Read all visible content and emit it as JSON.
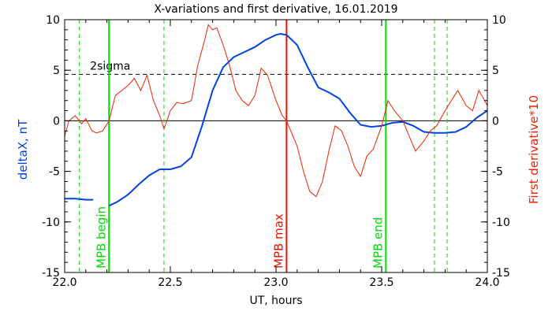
{
  "chart_data": {
    "type": "line",
    "title": "X-variations and first derivative, 16.01.2019",
    "xlabel": "UT, hours",
    "ylabel_left": "deltaX, nT",
    "ylabel_right": "First derivative*10",
    "xlim": [
      22.0,
      24.0
    ],
    "ylim": [
      -15,
      10
    ],
    "x_ticks": [
      "22.0",
      "22.5",
      "23.0",
      "23.5",
      "24.0"
    ],
    "y_ticks_left": [
      "-15",
      "-10",
      "-5",
      "0",
      "5",
      "10"
    ],
    "y_ticks_right": [
      "-15",
      "-10",
      "-5",
      "0",
      "5",
      "10"
    ],
    "grid": false,
    "threshold": {
      "label": "2sigma",
      "y": 4.6,
      "color": "#000000"
    },
    "markers": [
      {
        "label": "MPB begin",
        "x": 22.21,
        "color": "#00dd00"
      },
      {
        "label": "MPB max",
        "x": 23.05,
        "color": "#ee1100"
      },
      {
        "label": "MPB end",
        "x": 23.52,
        "color": "#00dd00"
      }
    ],
    "dashed_markers": [
      {
        "x": 22.07,
        "color": "#00dd00"
      },
      {
        "x": 22.47,
        "color": "#00dd00"
      },
      {
        "x": 23.75,
        "color": "#00dd00"
      },
      {
        "x": 23.81,
        "color": "#00dd00"
      }
    ],
    "series": [
      {
        "axis": "left",
        "color": "#0044dd",
        "x": [
          22.0,
          22.05,
          22.1,
          22.135,
          22.21,
          22.25,
          22.3,
          22.35,
          22.4,
          22.45,
          22.5,
          22.55,
          22.6,
          22.65,
          22.7,
          22.75,
          22.8,
          22.85,
          22.9,
          22.95,
          23.0,
          23.02,
          23.05,
          23.1,
          23.15,
          23.2,
          23.25,
          23.3,
          23.35,
          23.4,
          23.45,
          23.5,
          23.55,
          23.6,
          23.65,
          23.7,
          23.75,
          23.8,
          23.85,
          23.9,
          23.95,
          24.0
        ],
        "y": [
          -7.7,
          -7.7,
          -7.8,
          -7.8,
          -8.4,
          -8.0,
          -7.3,
          -6.3,
          -5.4,
          -4.8,
          -4.8,
          -4.5,
          -3.6,
          -0.5,
          3.0,
          5.3,
          6.3,
          6.8,
          7.3,
          8.0,
          8.5,
          8.6,
          8.5,
          7.5,
          5.3,
          3.3,
          2.8,
          2.2,
          0.8,
          -0.4,
          -0.6,
          -0.5,
          -0.2,
          -0.1,
          -0.5,
          -1.1,
          -1.2,
          -1.2,
          -1.1,
          -0.6,
          0.3,
          1.0
        ]
      },
      {
        "axis": "right",
        "color": "#ee2200",
        "x": [
          22.0,
          22.02,
          22.05,
          22.08,
          22.1,
          22.13,
          22.15,
          22.18,
          22.21,
          22.24,
          22.27,
          22.3,
          22.33,
          22.36,
          22.39,
          22.42,
          22.45,
          22.47,
          22.5,
          22.53,
          22.56,
          22.6,
          22.63,
          22.66,
          22.68,
          22.7,
          22.72,
          22.75,
          22.78,
          22.81,
          22.84,
          22.87,
          22.9,
          22.93,
          22.96,
          23.0,
          23.03,
          23.05,
          23.08,
          23.1,
          23.13,
          23.16,
          23.19,
          23.22,
          23.25,
          23.28,
          23.31,
          23.34,
          23.37,
          23.4,
          23.43,
          23.46,
          23.5,
          23.53,
          23.56,
          23.6,
          23.63,
          23.66,
          23.7,
          23.73,
          23.76,
          23.8,
          23.83,
          23.86,
          23.9,
          23.93,
          23.96,
          24.0
        ],
        "y": [
          -1.5,
          0.0,
          0.5,
          -0.3,
          0.2,
          -1.0,
          -1.2,
          -1.0,
          0.0,
          2.5,
          3.0,
          3.5,
          4.2,
          3.0,
          4.5,
          2.0,
          0.5,
          -0.8,
          1.0,
          1.8,
          1.7,
          2.0,
          5.5,
          7.8,
          9.5,
          9.0,
          9.2,
          7.5,
          5.5,
          3.0,
          2.0,
          1.5,
          2.5,
          5.2,
          4.5,
          2.0,
          0.5,
          0.0,
          -1.5,
          -2.5,
          -5.0,
          -7.0,
          -7.5,
          -6.0,
          -3.0,
          -0.5,
          -1.0,
          -2.5,
          -4.5,
          -5.5,
          -3.5,
          -2.8,
          -0.5,
          2.0,
          1.0,
          0.0,
          -1.5,
          -3.0,
          -2.0,
          -1.0,
          -0.5,
          1.0,
          2.0,
          3.0,
          1.5,
          1.0,
          3.0,
          1.5
        ]
      }
    ]
  }
}
